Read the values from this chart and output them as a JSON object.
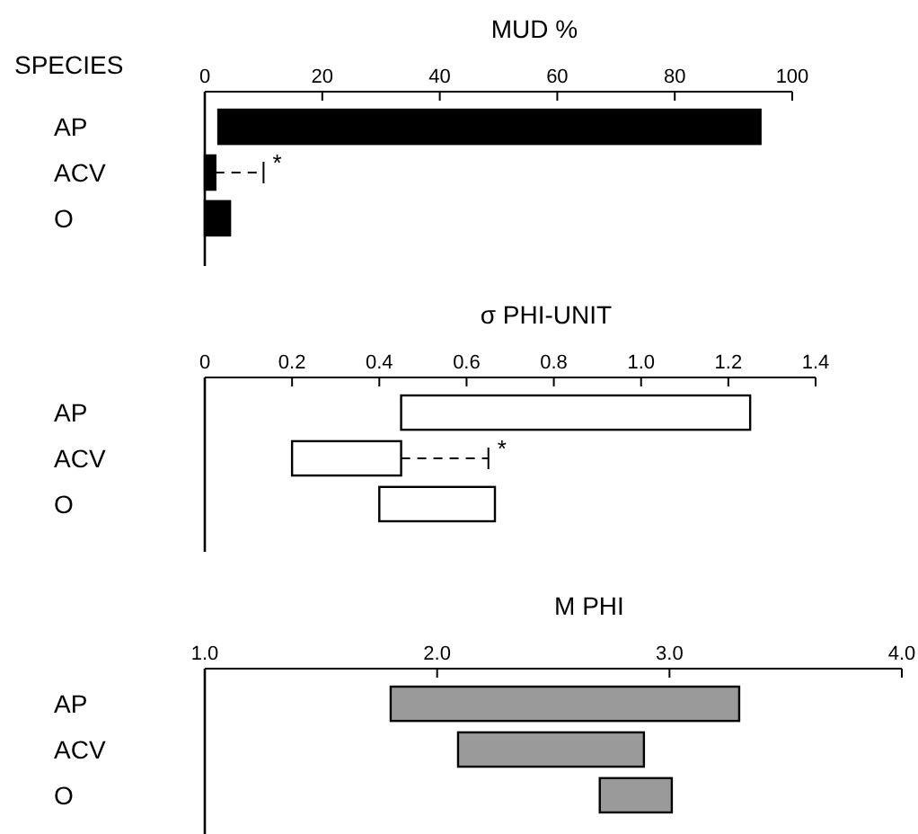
{
  "chart_data": [
    {
      "type": "bar",
      "orientation": "horizontal",
      "title": "MUD %",
      "ylabel": "SPECIES",
      "categories": [
        "AP",
        "ACV",
        "O"
      ],
      "base": [
        2.3,
        0,
        0
      ],
      "values": [
        92.3,
        1.8,
        4.3
      ],
      "color": "#000000",
      "errors": [
        null,
        [
          1.8,
          10
        ],
        null
      ],
      "xlim": [
        0,
        100
      ],
      "xticks": [
        0,
        20,
        40,
        60,
        80,
        100
      ],
      "grid": false,
      "annotations": [
        {
          "text": "*",
          "x": 10,
          "y": "ACV"
        }
      ]
    },
    {
      "type": "bar",
      "orientation": "horizontal",
      "title": "σ PHI-UNIT",
      "categories": [
        "AP",
        "ACV",
        "O"
      ],
      "base": [
        0.45,
        0.2,
        0.4
      ],
      "values": [
        0.8,
        0.25,
        0.265
      ],
      "color": "#ffffff",
      "errors": [
        null,
        [
          0.45,
          0.65
        ],
        null
      ],
      "xlim": [
        0,
        1.4
      ],
      "xticks": [
        0,
        0.2,
        0.4,
        0.6,
        0.8,
        {
          "value": 1,
          "label": "1.0"
        },
        1.2,
        1.4
      ],
      "grid": false,
      "annotations": [
        {
          "text": "*",
          "x": 0.65,
          "y": "ACV"
        }
      ]
    },
    {
      "type": "bar",
      "orientation": "horizontal",
      "title": "M PHI",
      "categories": [
        "AP",
        "ACV",
        "O"
      ],
      "base": [
        1.8,
        2.09,
        2.7
      ],
      "values": [
        1.5,
        0.8,
        0.31
      ],
      "color": "#9a9a9a",
      "xlim": [
        1,
        4
      ],
      "xticks": [
        {
          "value": 1,
          "label": "1.0"
        },
        {
          "value": 2,
          "label": "2.0"
        },
        {
          "value": 3,
          "label": "3.0"
        },
        {
          "value": 4,
          "label": "4.0"
        }
      ],
      "grid": false
    }
  ]
}
